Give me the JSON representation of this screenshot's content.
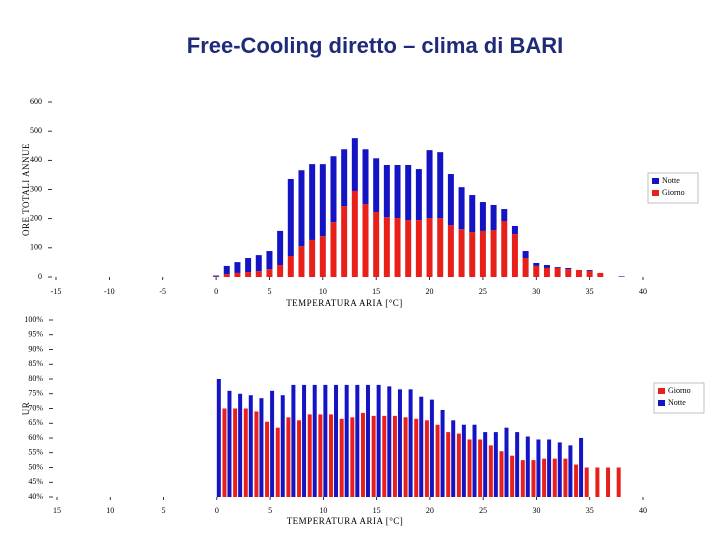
{
  "chart_data": [
    {
      "type": "stacked_bar",
      "title": "Free-Cooling diretto – clima di BARI",
      "x_label": "TEMPERATURA ARIA [°C]",
      "y_label": "ORE TOTALI ANNUE",
      "x": [
        0,
        1,
        2,
        3,
        4,
        5,
        6,
        7,
        8,
        9,
        10,
        11,
        12,
        13,
        14,
        15,
        16,
        17,
        18,
        19,
        20,
        21,
        22,
        23,
        24,
        25,
        26,
        27,
        28,
        29,
        30,
        31,
        32,
        33,
        34,
        35,
        36,
        37,
        38
      ],
      "series": [
        {
          "name": "Giorno",
          "color": "#e8201c",
          "values": [
            2,
            10,
            14,
            17,
            20,
            27,
            41,
            72,
            106,
            127,
            140,
            188,
            243,
            295,
            250,
            223,
            205,
            202,
            195,
            195,
            202,
            202,
            178,
            164,
            154,
            158,
            161,
            192,
            147,
            65,
            38,
            31,
            31,
            27,
            24,
            21,
            14,
            0,
            0
          ]
        },
        {
          "name": "Notte",
          "color": "#1414c4",
          "values": [
            3,
            28,
            37,
            48,
            55,
            62,
            117,
            264,
            260,
            260,
            247,
            226,
            195,
            181,
            188,
            184,
            179,
            182,
            189,
            175,
            233,
            226,
            175,
            144,
            127,
            99,
            86,
            41,
            28,
            24,
            10,
            10,
            3,
            4,
            0,
            3,
            0,
            0,
            2
          ]
        }
      ],
      "xlim": [
        -15,
        40
      ],
      "xticks": [
        -15,
        -10,
        -5,
        0,
        5,
        10,
        15,
        20,
        25,
        30,
        35,
        40
      ],
      "ylim": [
        0,
        600
      ],
      "yticks": [
        0,
        100,
        200,
        300,
        400,
        500,
        600
      ],
      "legend": "right"
    },
    {
      "type": "grouped_bar",
      "x_label": "TEMPERATURA ARIA [°C]",
      "y_label": "UR",
      "x": [
        0,
        1,
        2,
        3,
        4,
        5,
        6,
        7,
        8,
        9,
        10,
        11,
        12,
        13,
        14,
        15,
        16,
        17,
        18,
        19,
        20,
        21,
        22,
        23,
        24,
        25,
        26,
        27,
        28,
        29,
        30,
        31,
        32,
        33,
        34,
        35,
        36,
        37,
        38
      ],
      "series": [
        {
          "name": "Giorno",
          "color": "#e8201c",
          "values": [
            null,
            70,
            70,
            70,
            69,
            65.5,
            63.5,
            67,
            66,
            68,
            68,
            68,
            66.5,
            67,
            68.5,
            67.5,
            67.5,
            67.5,
            67,
            66.5,
            66,
            64.5,
            62,
            61.5,
            59.5,
            59.5,
            57.5,
            55.5,
            54,
            52.5,
            52.5,
            53,
            53,
            53,
            51,
            50,
            50,
            50,
            50
          ]
        },
        {
          "name": "Notte",
          "color": "#1414c4",
          "values": [
            80,
            76,
            75,
            74.5,
            73.5,
            76,
            74.5,
            78,
            78,
            78,
            78,
            78,
            78,
            78,
            78,
            78,
            77.5,
            76.5,
            76.5,
            74,
            73,
            69.5,
            66,
            64.5,
            64.5,
            62,
            62,
            63.5,
            62,
            60.5,
            59.5,
            59.5,
            58.5,
            57.5,
            60,
            null,
            null,
            null,
            null
          ]
        }
      ],
      "xlim": [
        -15,
        40
      ],
      "xticks": [
        {
          "value": -15,
          "label": "15"
        },
        {
          "value": -10,
          "label": "10"
        },
        {
          "value": -5,
          "label": "5"
        },
        0,
        5,
        10,
        15,
        20,
        25,
        30,
        35,
        40
      ],
      "ylim": [
        40,
        100
      ],
      "yticks": [
        {
          "value": 40,
          "label": "40%"
        },
        {
          "value": 45,
          "label": "45%"
        },
        {
          "value": 50,
          "label": "50%"
        },
        {
          "value": 55,
          "label": "55%"
        },
        {
          "value": 60,
          "label": "60%"
        },
        {
          "value": 65,
          "label": "65%"
        },
        {
          "value": 70,
          "label": "70%"
        },
        {
          "value": 75,
          "label": "75%"
        },
        {
          "value": 80,
          "label": "80%"
        },
        {
          "value": 85,
          "label": "85%"
        },
        {
          "value": 90,
          "label": "90%"
        },
        {
          "value": 95,
          "label": "95%"
        },
        {
          "value": 100,
          "label": "100%"
        }
      ],
      "legend": "right"
    }
  ]
}
